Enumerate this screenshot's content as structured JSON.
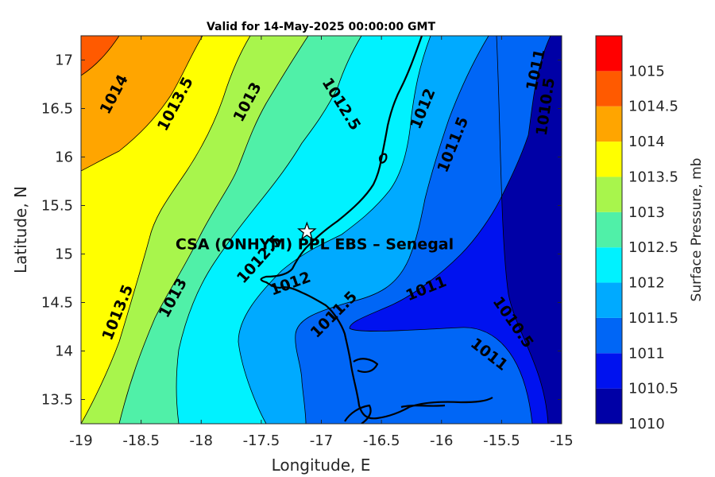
{
  "title": "Valid for 14-May-2025 00:00:00 GMT",
  "chart_data": {
    "type": "contour-map",
    "xlabel": "Longitude, E",
    "ylabel": "Latitude, N",
    "xlim": [
      -19,
      -15
    ],
    "ylim": [
      13.25,
      17.25
    ],
    "x_ticks": [
      "-19",
      "-18.5",
      "-18",
      "-17.5",
      "-17",
      "-16.5",
      "-16",
      "-15.5",
      "-15"
    ],
    "y_ticks": [
      "13.5",
      "14",
      "14.5",
      "15",
      "15.5",
      "16",
      "16.5",
      "17"
    ],
    "colorbar": {
      "title": "Surface Pressure, mb",
      "levels": [
        "1010",
        "1010.5",
        "1011",
        "1011.5",
        "1012",
        "1012.5",
        "1013",
        "1013.5",
        "1014",
        "1014.5",
        "1015"
      ],
      "colors": [
        "#0000a6",
        "#0012ef",
        "#0066f6",
        "#00aaff",
        "#00f2ff",
        "#50f0a8",
        "#a8f54c",
        "#ffff00",
        "#ffa500",
        "#ff5a00",
        "#ff0000"
      ]
    },
    "contour_labels": [
      {
        "text": "1014",
        "lon": -18.73,
        "lat": 16.65
      },
      {
        "text": "1013.5",
        "lon": -18.22,
        "lat": 16.55
      },
      {
        "text": "1013",
        "lon": -17.62,
        "lat": 16.57
      },
      {
        "text": "1012.5",
        "lon": -16.83,
        "lat": 16.55
      },
      {
        "text": "1012",
        "lon": -16.16,
        "lat": 16.5
      },
      {
        "text": "1011.5",
        "lon": -15.91,
        "lat": 16.13
      },
      {
        "text": "1011",
        "lon": -15.22,
        "lat": 16.9
      },
      {
        "text": "1010.5",
        "lon": -15.14,
        "lat": 16.52
      },
      {
        "text": "1013.5",
        "lon": -18.7,
        "lat": 14.4
      },
      {
        "text": "1013",
        "lon": -18.24,
        "lat": 14.55
      },
      {
        "text": "1012.5",
        "lon": -17.52,
        "lat": 14.95
      },
      {
        "text": "1012",
        "lon": -17.26,
        "lat": 14.7
      },
      {
        "text": "1011.5",
        "lon": -16.9,
        "lat": 14.38
      },
      {
        "text": "1011",
        "lon": -16.13,
        "lat": 14.65
      },
      {
        "text": "1010.5",
        "lon": -15.4,
        "lat": 14.3
      },
      {
        "text": "1011",
        "lon": -15.6,
        "lat": 13.97
      }
    ],
    "station": {
      "name": "CSA (ONHYM) PPL EBS  – Senegal",
      "lon": -17.12,
      "lat": 15.23,
      "marker": "star"
    }
  }
}
